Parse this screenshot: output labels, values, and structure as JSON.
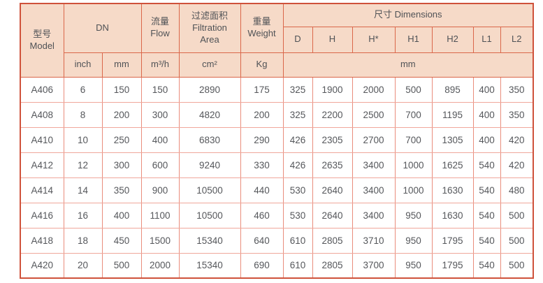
{
  "colors": {
    "header_bg": "#f6dac8",
    "border_strong": "#cf523b",
    "border_header": "#da674a",
    "border_row": "#f0a79b",
    "border_col": "#e98d7c",
    "text": "#55575b"
  },
  "header": {
    "model": "型号\nModel",
    "dn": "DN",
    "flow": "流量\nFlow",
    "filtration_area": "过滤面积\nFiltration\nArea",
    "weight": "重量\nWeight",
    "dimensions": "尺寸 Dimensions",
    "dim_columns": [
      "D",
      "H",
      "H*",
      "H1",
      "H2",
      "L1",
      "L2"
    ],
    "unit_inch": "inch",
    "unit_mm": "mm",
    "unit_flow": "m³/h",
    "unit_area": "cm²",
    "unit_weight": "Kg",
    "unit_dim": "mm"
  },
  "chart_data": {
    "type": "table",
    "column_groups": [
      {
        "label": "型号 Model",
        "columns": [
          "model"
        ]
      },
      {
        "label": "DN",
        "columns": [
          "inch",
          "mm"
        ]
      },
      {
        "label": "流量 Flow",
        "unit": "m³/h",
        "columns": [
          "flow"
        ]
      },
      {
        "label": "过滤面积 Filtration Area",
        "unit": "cm²",
        "columns": [
          "area"
        ]
      },
      {
        "label": "重量 Weight",
        "unit": "Kg",
        "columns": [
          "weight"
        ]
      },
      {
        "label": "尺寸 Dimensions",
        "unit": "mm",
        "columns": [
          "D",
          "H",
          "H*",
          "H1",
          "H2",
          "L1",
          "L2"
        ]
      }
    ],
    "rows": [
      [
        "A406",
        "6",
        "150",
        "150",
        "2890",
        "175",
        "325",
        "1900",
        "2000",
        "500",
        "895",
        "400",
        "350"
      ],
      [
        "A408",
        "8",
        "200",
        "300",
        "4820",
        "200",
        "325",
        "2200",
        "2500",
        "700",
        "1195",
        "400",
        "350"
      ],
      [
        "A410",
        "10",
        "250",
        "400",
        "6830",
        "290",
        "426",
        "2305",
        "2700",
        "700",
        "1305",
        "400",
        "420"
      ],
      [
        "A412",
        "12",
        "300",
        "600",
        "9240",
        "330",
        "426",
        "2635",
        "3400",
        "1000",
        "1625",
        "540",
        "420"
      ],
      [
        "A414",
        "14",
        "350",
        "900",
        "10500",
        "440",
        "530",
        "2640",
        "3400",
        "1000",
        "1630",
        "540",
        "480"
      ],
      [
        "A416",
        "16",
        "400",
        "1100",
        "10500",
        "460",
        "530",
        "2640",
        "3400",
        "950",
        "1630",
        "540",
        "500"
      ],
      [
        "A418",
        "18",
        "450",
        "1500",
        "15340",
        "640",
        "610",
        "2805",
        "3710",
        "950",
        "1795",
        "540",
        "500"
      ],
      [
        "A420",
        "20",
        "500",
        "2000",
        "15340",
        "690",
        "610",
        "2805",
        "3700",
        "950",
        "1795",
        "540",
        "500"
      ]
    ]
  }
}
